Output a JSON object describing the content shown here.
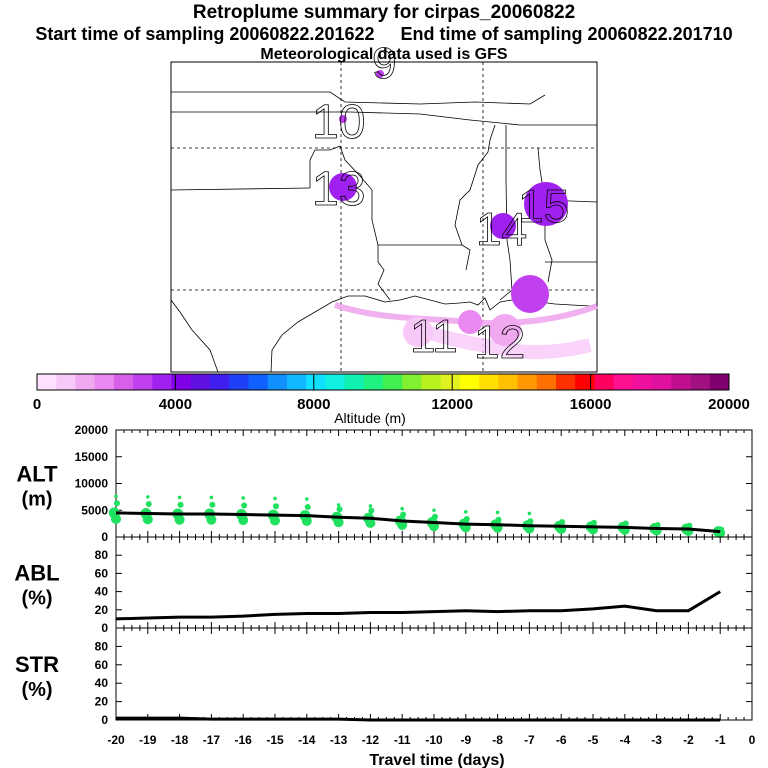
{
  "header": {
    "title": "Retroplume summary for cirpas_20060822",
    "start_label": "Start time of sampling 20060822.201622",
    "end_label": "End time of sampling 20060822.201710",
    "met_label": "Meteorological data used is GFS"
  },
  "colorbar": {
    "ticks": [
      "0",
      "4000",
      "8000",
      "12000",
      "16000",
      "20000"
    ],
    "label": "Altitude (m)",
    "colors": [
      "#ffe0ff",
      "#f8c8f8",
      "#f0a8f0",
      "#e888f0",
      "#d860e8",
      "#c040f0",
      "#a020f0",
      "#8000e8",
      "#6010e0",
      "#4020f0",
      "#2040f8",
      "#1060ff",
      "#1090ff",
      "#10b8ff",
      "#10e0ff",
      "#10f0e0",
      "#10f0b0",
      "#20f080",
      "#40f050",
      "#80f030",
      "#b8f020",
      "#e0f020",
      "#ffff00",
      "#ffe000",
      "#ffc000",
      "#ff9800",
      "#ff7000",
      "#ff3000",
      "#ff0000",
      "#ff0060",
      "#ff1090",
      "#f010a0",
      "#e010a0",
      "#c01090",
      "#a01080",
      "#800070"
    ]
  },
  "map": {
    "time_labels": [
      "9",
      "10",
      "13",
      "14",
      "15",
      "11",
      "12"
    ]
  },
  "chart_data": [
    {
      "type": "scatter",
      "panel": "ALT",
      "ylabel_line1": "ALT",
      "ylabel_line2": "(m)",
      "ylim": [
        0,
        20000
      ],
      "yticks": [
        "0",
        "5000",
        "10000",
        "15000",
        "20000"
      ],
      "x": [
        -20,
        -19,
        -18,
        -17,
        -16,
        -15,
        -14,
        -13,
        -12,
        -11,
        -10,
        -9,
        -8,
        -7,
        -6,
        -5,
        -4,
        -3,
        -2,
        -1
      ],
      "mean_altitude": [
        4500,
        4400,
        4300,
        4300,
        4200,
        4100,
        4000,
        3700,
        3500,
        3000,
        2700,
        2400,
        2300,
        2100,
        2000,
        1900,
        1800,
        1600,
        1500,
        1000
      ]
    },
    {
      "type": "line",
      "panel": "ABL",
      "ylabel_line1": "ABL",
      "ylabel_line2": "(%)",
      "ylim": [
        0,
        100
      ],
      "yticks": [
        "0",
        "20",
        "40",
        "60",
        "80"
      ],
      "x": [
        -20,
        -19,
        -18,
        -17,
        -16,
        -15,
        -14,
        -13,
        -12,
        -11,
        -10,
        -9,
        -8,
        -7,
        -6,
        -5,
        -4,
        -3,
        -2,
        -1
      ],
      "values": [
        10,
        11,
        12,
        12,
        13,
        15,
        16,
        16,
        17,
        17,
        18,
        19,
        18,
        19,
        19,
        21,
        24,
        19,
        19,
        40
      ]
    },
    {
      "type": "line",
      "panel": "STR",
      "ylabel_line1": "STR",
      "ylabel_line2": "(%)",
      "ylim": [
        0,
        100
      ],
      "yticks": [
        "0",
        "20",
        "40",
        "60",
        "80"
      ],
      "x": [
        -20,
        -19,
        -18,
        -17,
        -16,
        -15,
        -14,
        -13,
        -12,
        -11,
        -10,
        -9,
        -8,
        -7,
        -6,
        -5,
        -4,
        -3,
        -2,
        -1
      ],
      "values": [
        2,
        2,
        2,
        1,
        1,
        1,
        1,
        1,
        0,
        0,
        0,
        0,
        0,
        0,
        0,
        0,
        0,
        0,
        0,
        0
      ]
    }
  ],
  "xaxis": {
    "ticks": [
      "-20",
      "-19",
      "-18",
      "-17",
      "-16",
      "-15",
      "-14",
      "-13",
      "-12",
      "-11",
      "-10",
      "-9",
      "-8",
      "-7",
      "-6",
      "-5",
      "-4",
      "-3",
      "-2",
      "-1",
      "0"
    ],
    "label": "Travel time (days)"
  }
}
